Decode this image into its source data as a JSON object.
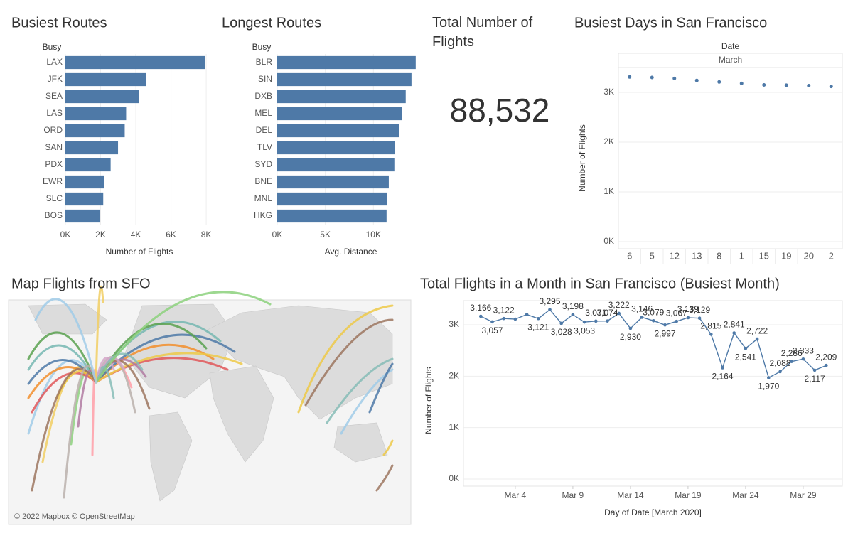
{
  "chart_data": [
    {
      "type": "bar",
      "orientation": "horizontal",
      "title": "Busiest Routes",
      "category_header": "Busy",
      "categories": [
        "LAX",
        "JFK",
        "SEA",
        "LAS",
        "ORD",
        "SAN",
        "PDX",
        "EWR",
        "SLC",
        "BOS"
      ],
      "values": [
        7950,
        4590,
        4170,
        3450,
        3370,
        2990,
        2570,
        2190,
        2150,
        1980
      ],
      "color": "#4e79a7",
      "xlim": [
        0,
        8400
      ],
      "xticks": [
        {
          "value": 0,
          "label": "0K"
        },
        {
          "value": 2000,
          "label": "2K"
        },
        {
          "value": 4000,
          "label": "4K"
        },
        {
          "value": 6000,
          "label": "6K"
        },
        {
          "value": 8000,
          "label": "8K"
        }
      ],
      "xlabel": "Number of Flights",
      "grid": true
    },
    {
      "type": "bar",
      "orientation": "horizontal",
      "title": "Longest Routes",
      "category_header": "Busy",
      "categories": [
        "BLR",
        "SIN",
        "DXB",
        "MEL",
        "DEL",
        "TLV",
        "SYD",
        "BNE",
        "MNL",
        "HKG"
      ],
      "values": [
        14400,
        13960,
        13360,
        12980,
        12670,
        12210,
        12180,
        11600,
        11450,
        11370
      ],
      "color": "#4e79a7",
      "xlim": [
        0,
        15300
      ],
      "xticks": [
        {
          "value": 0,
          "label": "0K"
        },
        {
          "value": 5000,
          "label": "5K"
        },
        {
          "value": 10000,
          "label": "10K"
        }
      ],
      "xlabel": "Avg. Distance",
      "grid": true
    },
    {
      "type": "dot",
      "title": "Busiest Days in San Francisco",
      "column_header": "Date",
      "column_group": "March",
      "categories": [
        "6",
        "5",
        "12",
        "13",
        "8",
        "1",
        "15",
        "19",
        "20",
        "2"
      ],
      "values": [
        3310,
        3300,
        3280,
        3240,
        3210,
        3180,
        3150,
        3145,
        3135,
        3120
      ],
      "color": "#4e79a7",
      "ylim": [
        0,
        3500
      ],
      "yticks": [
        {
          "value": 0,
          "label": "0K"
        },
        {
          "value": 1000,
          "label": "1K"
        },
        {
          "value": 2000,
          "label": "2K"
        },
        {
          "value": 3000,
          "label": "3K"
        }
      ],
      "ylabel": "Number of Flights",
      "grid": true
    },
    {
      "type": "line",
      "title": "Total Flights in a Month in San Francisco (Busiest Month)",
      "x": [
        1,
        2,
        3,
        4,
        5,
        6,
        7,
        8,
        9,
        10,
        11,
        12,
        13,
        14,
        15,
        16,
        17,
        18,
        19,
        20,
        21,
        22,
        23,
        24,
        25,
        26,
        27,
        28,
        29,
        30,
        31
      ],
      "series": [
        {
          "name": "Number of Flights",
          "color": "#4e79a7",
          "values": [
            3166,
            3057,
            3122,
            3110,
            3200,
            3121,
            3295,
            3028,
            3198,
            3053,
            3071,
            3074,
            3222,
            2930,
            3146,
            3079,
            2997,
            3067,
            3139,
            3129,
            2815,
            2164,
            2841,
            2541,
            2722,
            1970,
            2088,
            2286,
            2333,
            2117,
            2209
          ],
          "value_labels": [
            "3,166",
            "3,057",
            "3,122",
            null,
            null,
            "3,121",
            "3,295",
            "3,028",
            "3,198",
            "3,053",
            "3,071",
            "3,074",
            "3,222",
            "2,930",
            "3,146",
            "3,079",
            "2,997",
            "3,067",
            "3,139",
            "3,129",
            "2,815",
            "2,164",
            "2,841",
            "2,541",
            "2,722",
            "1,970",
            "2,088",
            "2,286",
            "2,333",
            "2,117",
            "2,209"
          ]
        }
      ],
      "xlim": [
        -0.5,
        32.4
      ],
      "xticks": [
        {
          "value": 4,
          "label": "Mar 4"
        },
        {
          "value": 9,
          "label": "Mar 9"
        },
        {
          "value": 14,
          "label": "Mar 14"
        },
        {
          "value": 19,
          "label": "Mar 19"
        },
        {
          "value": 24,
          "label": "Mar 24"
        },
        {
          "value": 29,
          "label": "Mar 29"
        }
      ],
      "ylim": [
        0,
        3470
      ],
      "yticks": [
        {
          "value": 0,
          "label": "0K"
        },
        {
          "value": 1000,
          "label": "1K"
        },
        {
          "value": 2000,
          "label": "2K"
        },
        {
          "value": 3000,
          "label": "3K"
        }
      ],
      "xlabel": "Day of Date [March 2020]",
      "ylabel": "Number of Flights",
      "grid": true
    }
  ],
  "kpi": {
    "title": "Total Number of Flights",
    "value": "88,532"
  },
  "map": {
    "title": "Map Flights from SFO",
    "attribution": "© 2022 Mapbox © OpenStreetMap"
  }
}
